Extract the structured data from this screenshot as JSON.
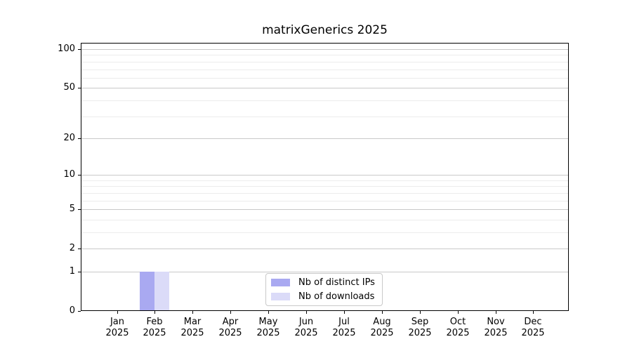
{
  "chart_data": {
    "type": "bar",
    "title": "matrixGenerics 2025",
    "categories": [
      "Jan",
      "Feb",
      "Mar",
      "Apr",
      "May",
      "Jun",
      "Jul",
      "Aug",
      "Sep",
      "Oct",
      "Nov",
      "Dec"
    ],
    "year": "2025",
    "series": [
      {
        "name": "Nb of distinct IPs",
        "color": "#a9a9f1",
        "values": [
          0,
          1,
          0,
          0,
          0,
          0,
          0,
          0,
          0,
          0,
          0,
          0
        ]
      },
      {
        "name": "Nb of downloads",
        "color": "#dbdbf8",
        "values": [
          0,
          1,
          0,
          0,
          0,
          0,
          0,
          0,
          0,
          0,
          0,
          0
        ]
      }
    ],
    "y_axis": {
      "scale": "log10(1+v)",
      "major_ticks": [
        0,
        1,
        2,
        5,
        10,
        20,
        50,
        100
      ],
      "minor_ticks": [
        3,
        4,
        6,
        7,
        8,
        9,
        30,
        40,
        60,
        70,
        80,
        90
      ],
      "top_value": 112
    },
    "x_axis": {
      "tick_label_lines": [
        "month",
        "year"
      ]
    },
    "legend_position": "lower center inside plot",
    "grid": {
      "major_color": "#c9c9c9",
      "minor_color": "#ececec"
    },
    "colors": {
      "spine": "#000000",
      "background": "#ffffff",
      "text": "#000000"
    }
  }
}
